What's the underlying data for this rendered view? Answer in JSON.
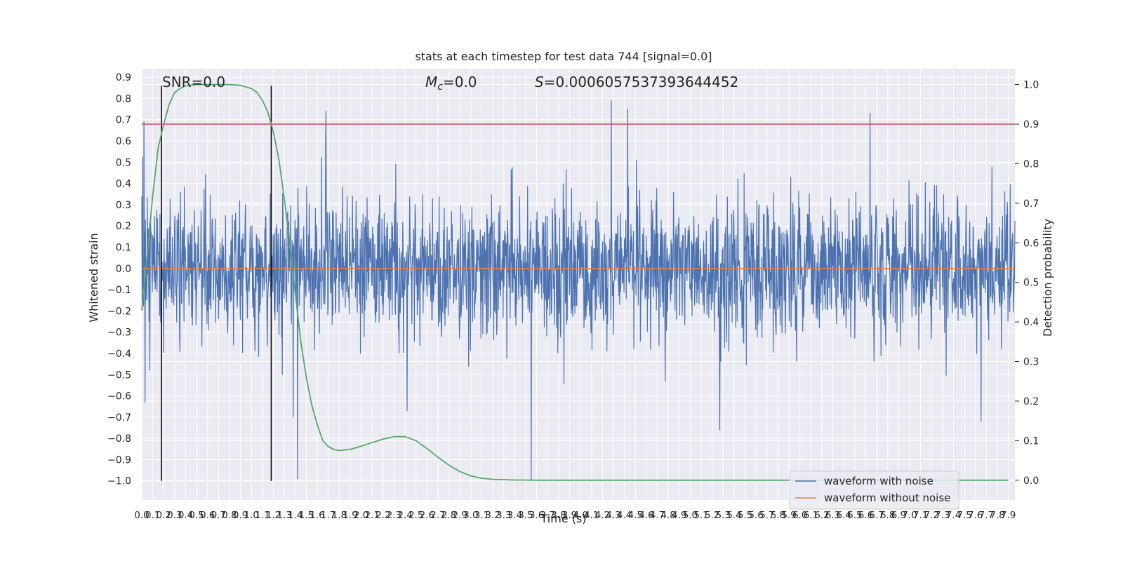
{
  "chart_data": {
    "type": "line",
    "title": "stats at each timestep for test data 744 [signal=0.0]",
    "xlabel": "Time (s)",
    "ylabel": "Whitened strain",
    "y2label": "Detection probability",
    "xlim": [
      0.0,
      7.96
    ],
    "ylim": [
      -1.09,
      0.94
    ],
    "y2lim": [
      -0.05,
      1.04
    ],
    "x_ticks": [
      "0.0",
      "0.1",
      "0.2",
      "0.3",
      "0.4",
      "0.5",
      "0.6",
      "0.7",
      "0.8",
      "0.9",
      "1.0",
      "1.1",
      "1.2",
      "1.3",
      "1.4",
      "1.5",
      "1.6",
      "1.7",
      "1.8",
      "1.9",
      "2.0",
      "2.1",
      "2.2",
      "2.3",
      "2.4",
      "2.5",
      "2.6",
      "2.7",
      "2.8",
      "2.9",
      "3.0",
      "3.1",
      "3.2",
      "3.3",
      "3.4",
      "3.5",
      "3.6",
      "3.7",
      "3.8",
      "3.9",
      "4.0",
      "4.1",
      "4.2",
      "4.3",
      "4.4",
      "4.5",
      "4.6",
      "4.7",
      "4.8",
      "4.9",
      "5.0",
      "5.1",
      "5.2",
      "5.3",
      "5.4",
      "5.5",
      "5.6",
      "5.7",
      "5.8",
      "5.9",
      "6.0",
      "6.1",
      "6.2",
      "6.3",
      "6.4",
      "6.5",
      "6.6",
      "6.7",
      "6.8",
      "6.9",
      "7.0",
      "7.1",
      "7.2",
      "7.3",
      "7.4",
      "7.5",
      "7.6",
      "7.7",
      "7.8",
      "7.9"
    ],
    "y_ticks": [
      "−1.0",
      "−0.9",
      "−0.8",
      "−0.7",
      "−0.6",
      "−0.5",
      "−0.4",
      "−0.3",
      "−0.2",
      "−0.1",
      "0.0",
      "0.1",
      "0.2",
      "0.3",
      "0.4",
      "0.5",
      "0.6",
      "0.7",
      "0.8",
      "0.9"
    ],
    "y2_ticks": [
      "0.0",
      "0.1",
      "0.2",
      "0.3",
      "0.4",
      "0.5",
      "0.6",
      "0.7",
      "0.8",
      "0.9",
      "1.0"
    ],
    "annotations": {
      "snr": "SNR=0.0",
      "mc_symbol": "M",
      "mc_sub": "c",
      "mc_value": "=0.0",
      "s_symbol": "S",
      "s_value": "=0.0006057537393644452"
    },
    "threshold": 0.9,
    "vlines_x": [
      0.18,
      1.18
    ],
    "legend": {
      "position": "lower-right",
      "entries": [
        "waveform with noise",
        "waveform without noise"
      ]
    },
    "series": [
      {
        "name": "waveform with noise",
        "color": "#4c72b0",
        "axis": "left",
        "noise_amplitude": 0.16,
        "notable_spikes": [
          {
            "x": 0.02,
            "y": 0.69
          },
          {
            "x": 0.03,
            "y": -0.63
          },
          {
            "x": 1.68,
            "y": 0.74
          },
          {
            "x": 2.42,
            "y": 0.86
          },
          {
            "x": 2.42,
            "y": -0.67
          },
          {
            "x": 3.55,
            "y": -1.0
          },
          {
            "x": 4.28,
            "y": 0.79
          },
          {
            "x": 4.43,
            "y": 0.75
          },
          {
            "x": 5.27,
            "y": -0.76
          },
          {
            "x": 6.64,
            "y": 0.73
          },
          {
            "x": 7.65,
            "y": -0.72
          },
          {
            "x": 1.38,
            "y": -0.7
          }
        ]
      },
      {
        "name": "waveform without noise",
        "color": "#dd8452",
        "axis": "left",
        "constant": 0.0
      },
      {
        "color": "#55a868",
        "axis": "right",
        "x": [
          0.0,
          0.05,
          0.1,
          0.15,
          0.2,
          0.25,
          0.3,
          0.35,
          0.4,
          0.5,
          0.6,
          0.7,
          0.8,
          0.9,
          1.0,
          1.05,
          1.1,
          1.15,
          1.2,
          1.25,
          1.3,
          1.35,
          1.4,
          1.45,
          1.5,
          1.55,
          1.6,
          1.65,
          1.7,
          1.75,
          1.8,
          1.9,
          2.0,
          2.1,
          2.2,
          2.3,
          2.4,
          2.5,
          2.6,
          2.7,
          2.8,
          2.9,
          3.0,
          3.1,
          3.2,
          3.4,
          3.6,
          4.0,
          5.0,
          6.0,
          7.0,
          7.9
        ],
        "y": [
          0.43,
          0.57,
          0.72,
          0.84,
          0.9,
          0.95,
          0.98,
          0.99,
          0.997,
          1.0,
          1.0,
          1.0,
          1.0,
          0.998,
          0.99,
          0.98,
          0.96,
          0.93,
          0.88,
          0.81,
          0.71,
          0.6,
          0.47,
          0.35,
          0.26,
          0.19,
          0.14,
          0.1,
          0.085,
          0.078,
          0.075,
          0.078,
          0.086,
          0.095,
          0.104,
          0.11,
          0.11,
          0.1,
          0.08,
          0.058,
          0.038,
          0.022,
          0.011,
          0.005,
          0.002,
          0.0005,
          0.0,
          0.0,
          0.0,
          0.0,
          0.0,
          0.0
        ]
      },
      {
        "color": "#c44e52",
        "axis": "right",
        "constant": 0.9
      }
    ]
  }
}
